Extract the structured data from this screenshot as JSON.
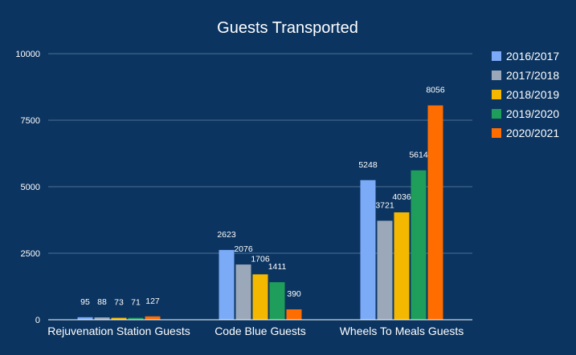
{
  "chart_data": {
    "type": "bar",
    "title": "Guests Transported",
    "xlabel": "",
    "ylabel": "",
    "ylim": [
      0,
      10000
    ],
    "yticks": [
      0,
      2500,
      5000,
      7500,
      10000
    ],
    "grid": true,
    "legend_position": "right",
    "categories": [
      "Rejuvenation Station Guests",
      "Code Blue Guests",
      "Wheels To Meals Guests"
    ],
    "series": [
      {
        "name": "2016/2017",
        "color": "#7baaf7",
        "values": [
          95,
          2623,
          5248
        ]
      },
      {
        "name": "2017/2018",
        "color": "#9aa8b9",
        "values": [
          88,
          2076,
          3721
        ]
      },
      {
        "name": "2018/2019",
        "color": "#f5b800",
        "values": [
          73,
          1706,
          4036
        ]
      },
      {
        "name": "2019/2020",
        "color": "#1e9e5a",
        "values": [
          71,
          1411,
          5614
        ]
      },
      {
        "name": "2020/2021",
        "color": "#ff6d01",
        "values": [
          127,
          390,
          8056
        ]
      }
    ]
  }
}
